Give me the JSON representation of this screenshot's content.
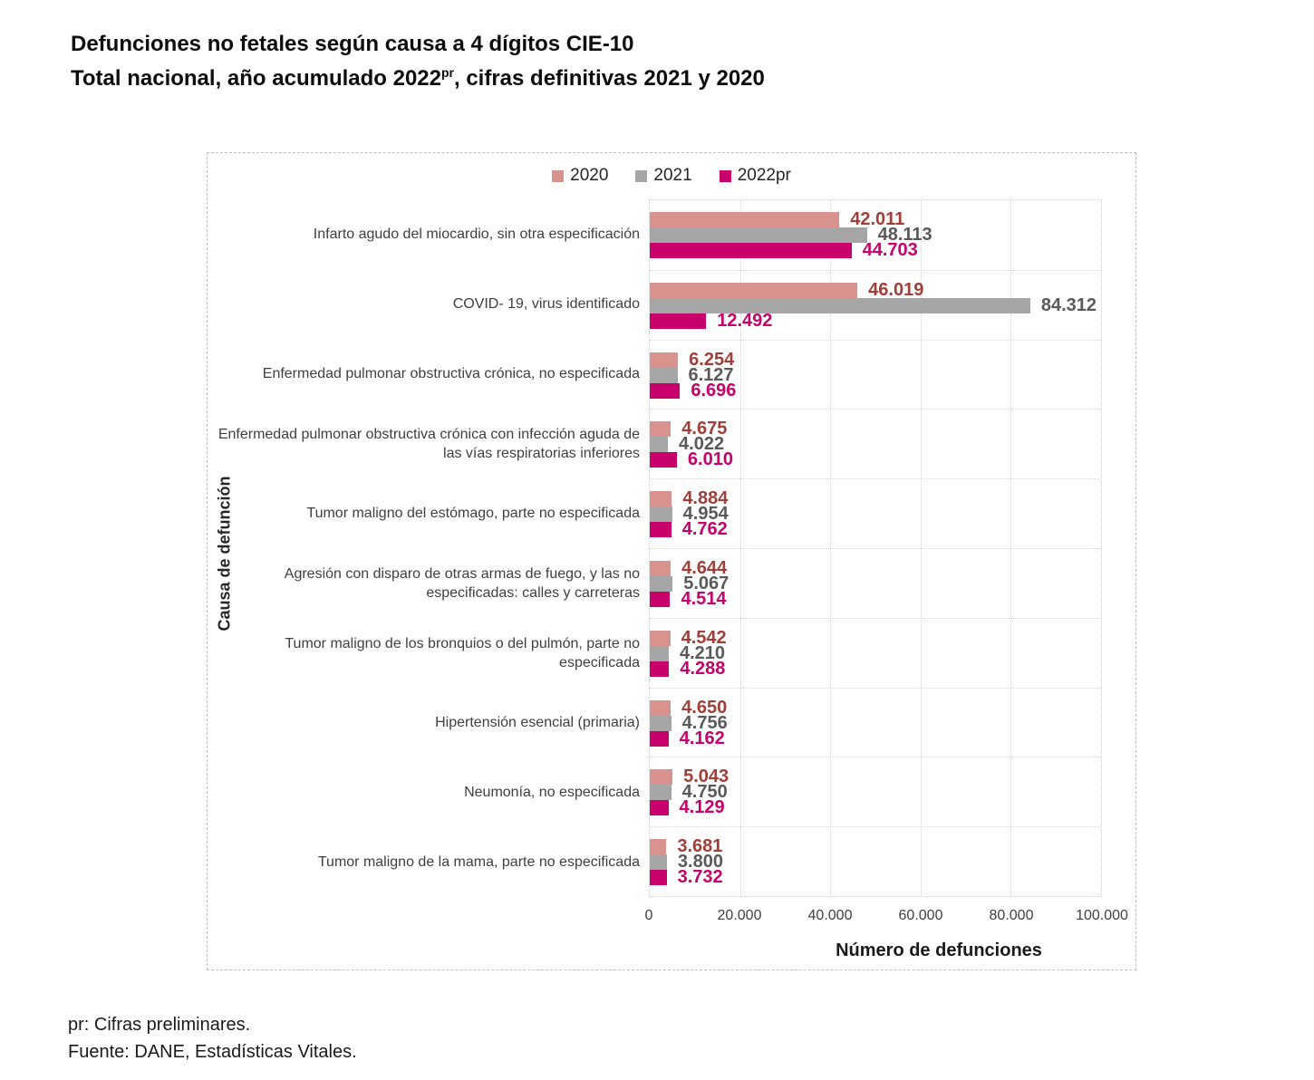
{
  "title": {
    "line1": "Defunciones no fetales según causa a 4 dígitos CIE-10",
    "line2_prefix": "Total nacional, año acumulado 2022",
    "line2_sup": "pr",
    "line2_suffix": ", cifras definitivas 2021 y 2020"
  },
  "chart_data": {
    "type": "bar",
    "orientation": "horizontal",
    "xlabel": "Número de defunciones",
    "ylabel": "Causa de defunción",
    "xlim": [
      0,
      100000
    ],
    "x_ticks": [
      "0",
      "20.000",
      "40.000",
      "60.000",
      "80.000",
      "100.000"
    ],
    "grid": "dotted",
    "legend_position": "top-center",
    "categories": [
      "Infarto agudo del miocardio, sin otra especificación",
      "COVID- 19, virus identificado",
      "Enfermedad pulmonar obstructiva crónica, no especificada",
      "Enfermedad pulmonar obstructiva crónica con infección aguda de las vías respiratorias inferiores",
      "Tumor maligno del estómago, parte no especificada",
      "Agresión con disparo de otras armas de fuego, y las no especificadas: calles y carreteras",
      "Tumor maligno de los bronquios o del pulmón, parte no especificada",
      "Hipertensión esencial (primaria)",
      "Neumonía, no especificada",
      "Tumor maligno de la mama, parte no especificada"
    ],
    "series": [
      {
        "name": "2020",
        "color": "#D9938F",
        "label_color": "#A03E38",
        "values": [
          42011,
          46019,
          6254,
          4675,
          4884,
          4644,
          4542,
          4650,
          5043,
          3681
        ],
        "labels": [
          "42.011",
          "46.019",
          "6.254",
          "4.675",
          "4.884",
          "4.644",
          "4.542",
          "4.650",
          "5.043",
          "3.681"
        ]
      },
      {
        "name": "2021",
        "color": "#A6A6A6",
        "label_color": "#595959",
        "values": [
          48113,
          84312,
          6127,
          4022,
          4954,
          5067,
          4210,
          4756,
          4750,
          3800
        ],
        "labels": [
          "48.113",
          "84.312",
          "6.127",
          "4.022",
          "4.954",
          "5.067",
          "4.210",
          "4.756",
          "4.750",
          "3.800"
        ]
      },
      {
        "name": "2022pr",
        "color": "#C7006C",
        "label_color": "#C7006C",
        "values": [
          44703,
          12492,
          6696,
          6010,
          4762,
          4514,
          4288,
          4162,
          4129,
          3732
        ],
        "labels": [
          "44.703",
          "12.492",
          "6.696",
          "6.010",
          "4.762",
          "4.514",
          "4.288",
          "4.162",
          "4.129",
          "3.732"
        ]
      }
    ]
  },
  "footer": {
    "line1": "pr: Cifras preliminares.",
    "line2": "Fuente: DANE, Estadísticas Vitales."
  }
}
